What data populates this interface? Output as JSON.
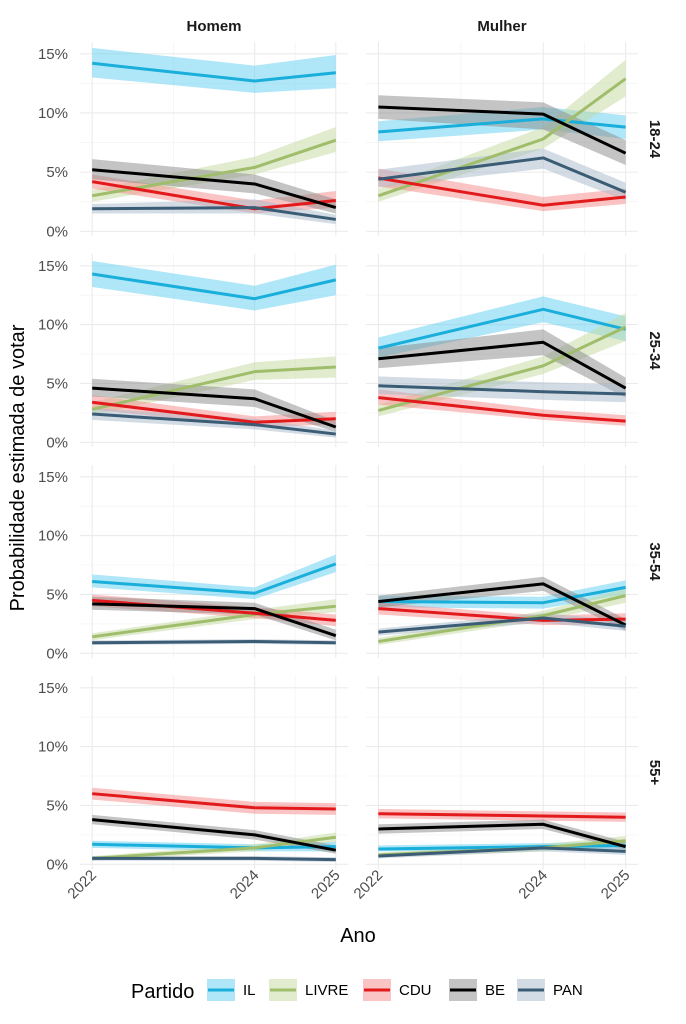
{
  "chart_data": {
    "type": "line",
    "ylabel": "Probabilidade estimada de votar",
    "xlabel": "Ano",
    "x": [
      2022,
      2024,
      2025
    ],
    "x_tick_labels": [
      "2022",
      "2024",
      "2025"
    ],
    "ylim": [
      0,
      16
    ],
    "y_ticks": [
      0,
      5,
      10,
      15
    ],
    "y_tick_labels": [
      "0%",
      "5%",
      "10%",
      "15%"
    ],
    "grid": true,
    "columns": [
      "Homem",
      "Mulher"
    ],
    "rows": [
      "18-24",
      "25-34",
      "35-54",
      "55+"
    ],
    "legend": {
      "title": "Partido",
      "position": "bottom",
      "entries": [
        "IL",
        "LIVRE",
        "CDU",
        "BE",
        "PAN"
      ]
    },
    "colors": {
      "IL": "#1aaedb",
      "LIVRE": "#9fbd6b",
      "CDU": "#e31a1c",
      "BE": "#000000",
      "PAN": "#3b5c75"
    },
    "band_colors": {
      "IL": "#5fd0f2",
      "LIVRE": "#c3d9a0",
      "CDU": "#f58a8a",
      "BE": "#8a8a8a",
      "PAN": "#a7b9c9"
    },
    "panels": [
      {
        "row": "18-24",
        "col": "Homem",
        "series": [
          {
            "party": "IL",
            "values": [
              14.2,
              12.7,
              13.4
            ],
            "lower": [
              13.0,
              11.7,
              12.1
            ],
            "upper": [
              15.5,
              14.0,
              14.9
            ]
          },
          {
            "party": "LIVRE",
            "values": [
              3.0,
              5.4,
              7.7
            ],
            "lower": [
              2.5,
              4.8,
              6.7
            ],
            "upper": [
              3.5,
              6.3,
              8.8
            ]
          },
          {
            "party": "CDU",
            "values": [
              4.2,
              1.9,
              2.6
            ],
            "lower": [
              3.6,
              1.5,
              2.0
            ],
            "upper": [
              4.8,
              2.6,
              3.4
            ]
          },
          {
            "party": "BE",
            "values": [
              5.2,
              4.0,
              2.0
            ],
            "lower": [
              4.4,
              3.2,
              1.5
            ],
            "upper": [
              6.1,
              4.8,
              2.7
            ]
          },
          {
            "party": "PAN",
            "values": [
              1.9,
              2.0,
              1.0
            ],
            "lower": [
              1.5,
              1.5,
              0.6
            ],
            "upper": [
              2.3,
              2.7,
              1.4
            ]
          }
        ]
      },
      {
        "row": "18-24",
        "col": "Mulher",
        "series": [
          {
            "party": "IL",
            "values": [
              8.4,
              9.5,
              8.8
            ],
            "lower": [
              7.6,
              8.6,
              7.8
            ],
            "upper": [
              9.3,
              10.5,
              9.8
            ]
          },
          {
            "party": "LIVRE",
            "values": [
              3.0,
              7.8,
              12.9
            ],
            "lower": [
              2.5,
              7.0,
              11.4
            ],
            "upper": [
              3.6,
              8.8,
              14.5
            ]
          },
          {
            "party": "CDU",
            "values": [
              4.5,
              2.2,
              2.9
            ],
            "lower": [
              3.8,
              1.7,
              2.3
            ],
            "upper": [
              5.3,
              2.9,
              3.6
            ]
          },
          {
            "party": "BE",
            "values": [
              10.5,
              9.9,
              6.6
            ],
            "lower": [
              9.5,
              8.6,
              5.6
            ],
            "upper": [
              11.5,
              10.9,
              7.7
            ]
          },
          {
            "party": "PAN",
            "values": [
              4.4,
              6.2,
              3.3
            ],
            "lower": [
              3.7,
              5.3,
              2.6
            ],
            "upper": [
              5.2,
              7.0,
              4.1
            ]
          }
        ]
      },
      {
        "row": "25-34",
        "col": "Homem",
        "series": [
          {
            "party": "IL",
            "values": [
              14.3,
              12.2,
              13.8
            ],
            "lower": [
              13.2,
              11.2,
              12.5
            ],
            "upper": [
              15.4,
              13.3,
              15.1
            ]
          },
          {
            "party": "LIVRE",
            "values": [
              2.8,
              6.0,
              6.4
            ],
            "lower": [
              2.3,
              5.3,
              5.5
            ],
            "upper": [
              3.4,
              6.8,
              7.3
            ]
          },
          {
            "party": "CDU",
            "values": [
              3.4,
              1.7,
              2.0
            ],
            "lower": [
              2.8,
              1.3,
              1.5
            ],
            "upper": [
              4.0,
              2.2,
              2.6
            ]
          },
          {
            "party": "BE",
            "values": [
              4.6,
              3.7,
              1.3
            ],
            "lower": [
              3.9,
              3.0,
              0.9
            ],
            "upper": [
              5.4,
              4.5,
              1.8
            ]
          },
          {
            "party": "PAN",
            "values": [
              2.4,
              1.5,
              0.7
            ],
            "lower": [
              1.9,
              1.1,
              0.4
            ],
            "upper": [
              2.9,
              2.0,
              1.0
            ]
          }
        ]
      },
      {
        "row": "25-34",
        "col": "Mulher",
        "series": [
          {
            "party": "IL",
            "values": [
              8.0,
              11.3,
              9.6
            ],
            "lower": [
              7.2,
              10.2,
              8.6
            ],
            "upper": [
              8.9,
              12.4,
              10.7
            ]
          },
          {
            "party": "LIVRE",
            "values": [
              2.7,
              6.5,
              9.8
            ],
            "lower": [
              2.2,
              5.8,
              8.6
            ],
            "upper": [
              3.2,
              7.3,
              11.0
            ]
          },
          {
            "party": "CDU",
            "values": [
              3.8,
              2.3,
              1.8
            ],
            "lower": [
              3.2,
              1.9,
              1.4
            ],
            "upper": [
              4.5,
              2.8,
              2.3
            ]
          },
          {
            "party": "BE",
            "values": [
              7.1,
              8.5,
              4.6
            ],
            "lower": [
              6.3,
              7.4,
              3.8
            ],
            "upper": [
              8.0,
              9.6,
              5.5
            ]
          },
          {
            "party": "PAN",
            "values": [
              4.8,
              4.3,
              4.1
            ],
            "lower": [
              4.1,
              3.6,
              3.4
            ],
            "upper": [
              5.6,
              5.1,
              4.9
            ]
          }
        ]
      },
      {
        "row": "35-54",
        "col": "Homem",
        "series": [
          {
            "party": "IL",
            "values": [
              6.1,
              5.1,
              7.6
            ],
            "lower": [
              5.6,
              4.6,
              6.9
            ],
            "upper": [
              6.7,
              5.6,
              8.4
            ]
          },
          {
            "party": "LIVRE",
            "values": [
              1.4,
              3.3,
              4.0
            ],
            "lower": [
              1.1,
              2.9,
              3.5
            ],
            "upper": [
              1.7,
              3.7,
              4.6
            ]
          },
          {
            "party": "CDU",
            "values": [
              4.5,
              3.4,
              2.8
            ],
            "lower": [
              4.0,
              3.0,
              2.3
            ],
            "upper": [
              5.0,
              3.9,
              3.3
            ]
          },
          {
            "party": "BE",
            "values": [
              4.2,
              3.8,
              1.5
            ],
            "lower": [
              3.7,
              3.3,
              1.1
            ],
            "upper": [
              4.8,
              4.3,
              2.0
            ]
          },
          {
            "party": "PAN",
            "values": [
              0.9,
              1.0,
              0.9
            ],
            "lower": [
              0.7,
              0.8,
              0.7
            ],
            "upper": [
              1.1,
              1.2,
              1.1
            ]
          }
        ]
      },
      {
        "row": "35-54",
        "col": "Mulher",
        "series": [
          {
            "party": "IL",
            "values": [
              4.4,
              4.3,
              5.6
            ],
            "lower": [
              3.9,
              3.8,
              5.0
            ],
            "upper": [
              4.9,
              4.8,
              6.2
            ]
          },
          {
            "party": "LIVRE",
            "values": [
              1.0,
              3.2,
              4.9
            ],
            "lower": [
              0.7,
              2.8,
              4.3
            ],
            "upper": [
              1.3,
              3.6,
              5.5
            ]
          },
          {
            "party": "CDU",
            "values": [
              3.8,
              2.8,
              2.9
            ],
            "lower": [
              3.3,
              2.4,
              2.4
            ],
            "upper": [
              4.3,
              3.2,
              3.4
            ]
          },
          {
            "party": "BE",
            "values": [
              4.4,
              5.9,
              2.4
            ],
            "lower": [
              3.9,
              5.3,
              1.9
            ],
            "upper": [
              4.9,
              6.5,
              2.9
            ]
          },
          {
            "party": "PAN",
            "values": [
              1.8,
              3.0,
              2.3
            ],
            "lower": [
              1.5,
              2.6,
              1.9
            ],
            "upper": [
              2.1,
              3.4,
              2.8
            ]
          }
        ]
      },
      {
        "row": "55+",
        "col": "Homem",
        "series": [
          {
            "party": "IL",
            "values": [
              1.7,
              1.4,
              1.5
            ],
            "lower": [
              1.4,
              1.1,
              1.1
            ],
            "upper": [
              2.0,
              1.7,
              1.9
            ]
          },
          {
            "party": "LIVRE",
            "values": [
              0.5,
              1.4,
              2.3
            ],
            "lower": [
              0.3,
              1.1,
              1.9
            ],
            "upper": [
              0.7,
              1.7,
              2.7
            ]
          },
          {
            "party": "CDU",
            "values": [
              6.0,
              4.8,
              4.7
            ],
            "lower": [
              5.5,
              4.3,
              4.2
            ],
            "upper": [
              6.5,
              5.3,
              5.2
            ]
          },
          {
            "party": "BE",
            "values": [
              3.8,
              2.5,
              1.2
            ],
            "lower": [
              3.4,
              2.1,
              0.9
            ],
            "upper": [
              4.2,
              2.9,
              1.6
            ]
          },
          {
            "party": "PAN",
            "values": [
              0.5,
              0.5,
              0.4
            ],
            "lower": [
              0.3,
              0.3,
              0.2
            ],
            "upper": [
              0.7,
              0.7,
              0.6
            ]
          }
        ]
      },
      {
        "row": "55+",
        "col": "Mulher",
        "series": [
          {
            "party": "IL",
            "values": [
              1.3,
              1.5,
              1.6
            ],
            "lower": [
              1.1,
              1.2,
              1.3
            ],
            "upper": [
              1.6,
              1.8,
              2.0
            ]
          },
          {
            "party": "LIVRE",
            "values": [
              0.8,
              1.4,
              2.0
            ],
            "lower": [
              0.6,
              1.1,
              1.6
            ],
            "upper": [
              1.0,
              1.7,
              2.4
            ]
          },
          {
            "party": "CDU",
            "values": [
              4.3,
              4.1,
              4.0
            ],
            "lower": [
              3.9,
              3.7,
              3.6
            ],
            "upper": [
              4.7,
              4.5,
              4.4
            ]
          },
          {
            "party": "BE",
            "values": [
              3.0,
              3.4,
              1.5
            ],
            "lower": [
              2.6,
              3.0,
              1.2
            ],
            "upper": [
              3.4,
              3.8,
              1.9
            ]
          },
          {
            "party": "PAN",
            "values": [
              0.7,
              1.4,
              1.1
            ],
            "lower": [
              0.5,
              1.1,
              0.8
            ],
            "upper": [
              0.9,
              1.7,
              1.4
            ]
          }
        ]
      }
    ]
  }
}
